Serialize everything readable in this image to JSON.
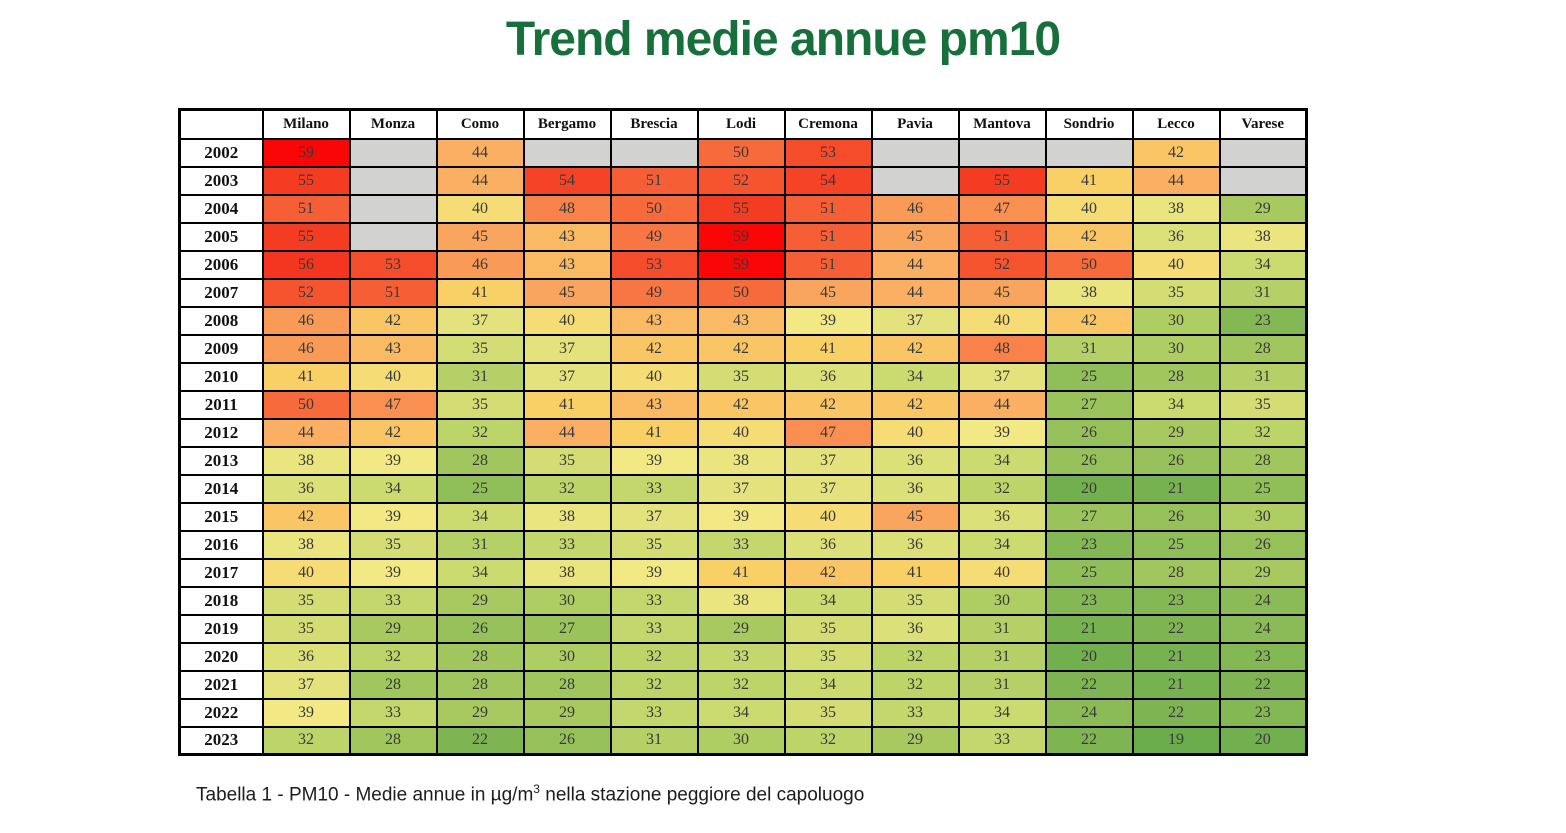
{
  "title": "Trend medie annue pm10",
  "caption": {
    "prefix": "Tabella 1 - PM10 - Medie annue in µg/m",
    "superscript": "3",
    "suffix": " nella stazione peggiore del capoluogo"
  },
  "colors": {
    "title_green": "#17703C",
    "missing_cell": "#D2D2D0",
    "grid_border": "#000000",
    "scale_stops": [
      [
        19,
        "#6BAC4D"
      ],
      [
        24,
        "#8ABB56"
      ],
      [
        29,
        "#A7C95F"
      ],
      [
        34,
        "#CBDB70"
      ],
      [
        37,
        "#E4E27C"
      ],
      [
        39,
        "#F2E884"
      ],
      [
        41,
        "#F8D066"
      ],
      [
        44,
        "#FAAF62"
      ],
      [
        46,
        "#F99B57"
      ],
      [
        48,
        "#F8824A"
      ],
      [
        50,
        "#F66A3B"
      ],
      [
        52,
        "#F5542F"
      ],
      [
        54,
        "#F44326"
      ],
      [
        56,
        "#F43520"
      ],
      [
        58,
        "#F81C10"
      ],
      [
        59,
        "#FB0606"
      ]
    ]
  },
  "chart_data": {
    "type": "heatmap",
    "title": "Trend medie annue pm10",
    "unit": "µg/m³",
    "value_range": [
      19,
      59
    ],
    "legend": "color scale: green = low, yellow = mid, red = high, grey = no data",
    "columns": [
      "Milano",
      "Monza",
      "Como",
      "Bergamo",
      "Brescia",
      "Lodi",
      "Cremona",
      "Pavia",
      "Mantova",
      "Sondrio",
      "Lecco",
      "Varese"
    ],
    "rows": [
      "2002",
      "2003",
      "2004",
      "2005",
      "2006",
      "2007",
      "2008",
      "2009",
      "2010",
      "2011",
      "2012",
      "2013",
      "2014",
      "2015",
      "2016",
      "2017",
      "2018",
      "2019",
      "2020",
      "2021",
      "2022",
      "2023"
    ],
    "values": [
      [
        59,
        null,
        44,
        null,
        null,
        50,
        53,
        null,
        null,
        null,
        42,
        null
      ],
      [
        55,
        null,
        44,
        54,
        51,
        52,
        54,
        null,
        55,
        41,
        44,
        null
      ],
      [
        51,
        null,
        40,
        48,
        50,
        55,
        51,
        46,
        47,
        40,
        38,
        29
      ],
      [
        55,
        null,
        45,
        43,
        49,
        59,
        51,
        45,
        51,
        42,
        36,
        38
      ],
      [
        56,
        53,
        46,
        43,
        53,
        59,
        51,
        44,
        52,
        50,
        40,
        34
      ],
      [
        52,
        51,
        41,
        45,
        49,
        50,
        45,
        44,
        45,
        38,
        35,
        31
      ],
      [
        46,
        42,
        37,
        40,
        43,
        43,
        39,
        37,
        40,
        42,
        30,
        23
      ],
      [
        46,
        43,
        35,
        37,
        42,
        42,
        41,
        42,
        48,
        31,
        30,
        28
      ],
      [
        41,
        40,
        31,
        37,
        40,
        35,
        36,
        34,
        37,
        25,
        28,
        31
      ],
      [
        50,
        47,
        35,
        41,
        43,
        42,
        42,
        42,
        44,
        27,
        34,
        35
      ],
      [
        44,
        42,
        32,
        44,
        41,
        40,
        47,
        40,
        39,
        26,
        29,
        32
      ],
      [
        38,
        39,
        28,
        35,
        39,
        38,
        37,
        36,
        34,
        26,
        26,
        28
      ],
      [
        36,
        34,
        25,
        32,
        33,
        37,
        37,
        36,
        32,
        20,
        21,
        25
      ],
      [
        42,
        39,
        34,
        38,
        37,
        39,
        40,
        45,
        36,
        27,
        26,
        30
      ],
      [
        38,
        35,
        31,
        33,
        35,
        33,
        36,
        36,
        34,
        23,
        25,
        26
      ],
      [
        40,
        39,
        34,
        38,
        39,
        41,
        42,
        41,
        40,
        25,
        28,
        29
      ],
      [
        35,
        33,
        29,
        30,
        33,
        38,
        34,
        35,
        30,
        23,
        23,
        24
      ],
      [
        35,
        29,
        26,
        27,
        33,
        29,
        35,
        36,
        31,
        21,
        22,
        24
      ],
      [
        36,
        32,
        28,
        30,
        32,
        33,
        35,
        32,
        31,
        20,
        21,
        23
      ],
      [
        37,
        28,
        28,
        28,
        32,
        32,
        34,
        32,
        31,
        22,
        21,
        22
      ],
      [
        39,
        33,
        29,
        29,
        33,
        34,
        35,
        33,
        34,
        24,
        22,
        23
      ],
      [
        32,
        28,
        22,
        26,
        31,
        30,
        32,
        29,
        33,
        22,
        19,
        20
      ]
    ]
  }
}
